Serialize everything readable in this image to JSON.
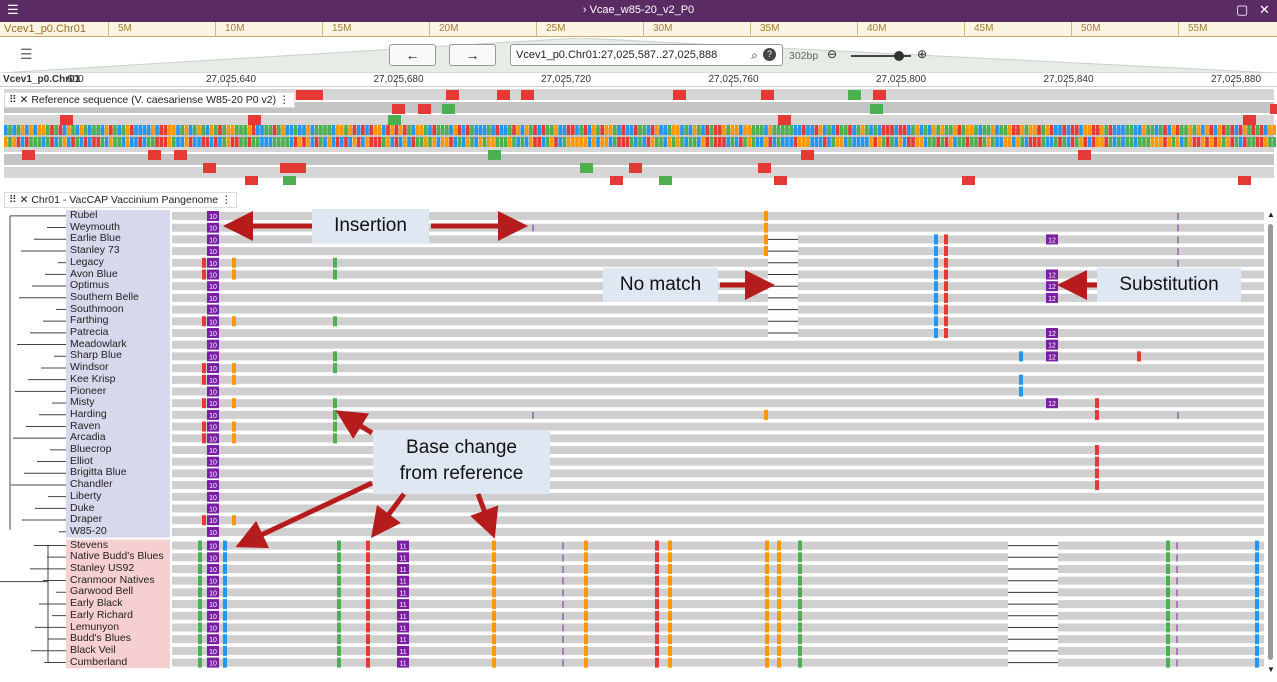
{
  "window_title": "Vcae_w85-20_v2_P0",
  "overview": {
    "chrom": "Vcev1_p0.Chr01",
    "ticks": [
      "5M",
      "10M",
      "15M",
      "20M",
      "25M",
      "30M",
      "35M",
      "40M",
      "45M",
      "50M",
      "55M"
    ]
  },
  "nav": {
    "back_icon": "arrow-left-icon",
    "forward_icon": "arrow-right-icon",
    "location": "Vcev1_p0.Chr01:27,025,587..27,025,888",
    "bp": "302bp",
    "zoom_level": 0.8
  },
  "ruler": {
    "chrom": "Vcev1_p0.Chr01",
    "start_label": "600",
    "ticks": [
      "27,025,640",
      "27,025,680",
      "27,025,720",
      "27,025,760",
      "27,025,800",
      "27,025,840",
      "27,025,880"
    ]
  },
  "track1": {
    "label": "Reference sequence (V. caesariense W85-20 P0 v2)"
  },
  "track2": {
    "label": "Chr01 - VacCAP Vaccinium Pangenome",
    "samples_a": [
      "Rubel",
      "Weymouth",
      "Earlie Blue",
      "Stanley 73",
      "Legacy",
      "Avon Blue",
      "Optimus",
      "Southern Belle",
      "Southmoon",
      "Farthing",
      "Patrecia",
      "Meadowlark",
      "Sharp Blue",
      "Windsor",
      "Kee Krisp",
      "Pioneer",
      "Misty",
      "Harding",
      "Raven",
      "Arcadia",
      "Bluecrop",
      "Elliot",
      "Brigitta Blue",
      "Chandler",
      "Liberty",
      "Duke",
      "Draper",
      "W85-20"
    ],
    "samples_b": [
      "Stevens",
      "Native Budd's Blues",
      "Stanley US92",
      "Cranmoor Natives",
      "Garwood Bell",
      "Early Black",
      "Early Richard",
      "Lemunyon",
      "Budd's Blues",
      "Black Veil",
      "Cumberland"
    ],
    "badge_a": "10",
    "badge_b": "11",
    "badge_c": "12"
  },
  "annotations": {
    "insertion": "Insertion",
    "no_match": "No match",
    "substitution": "Substitution",
    "base_change_1": "Base change",
    "base_change_2": "from reference"
  },
  "colors": {
    "titlebar": "#5b2b63",
    "A": "#4caf50",
    "C": "#2196f3",
    "G": "#ff9800",
    "T": "#e53935",
    "insertion": "#7b1fa2",
    "arrow": "#b71c1c"
  }
}
